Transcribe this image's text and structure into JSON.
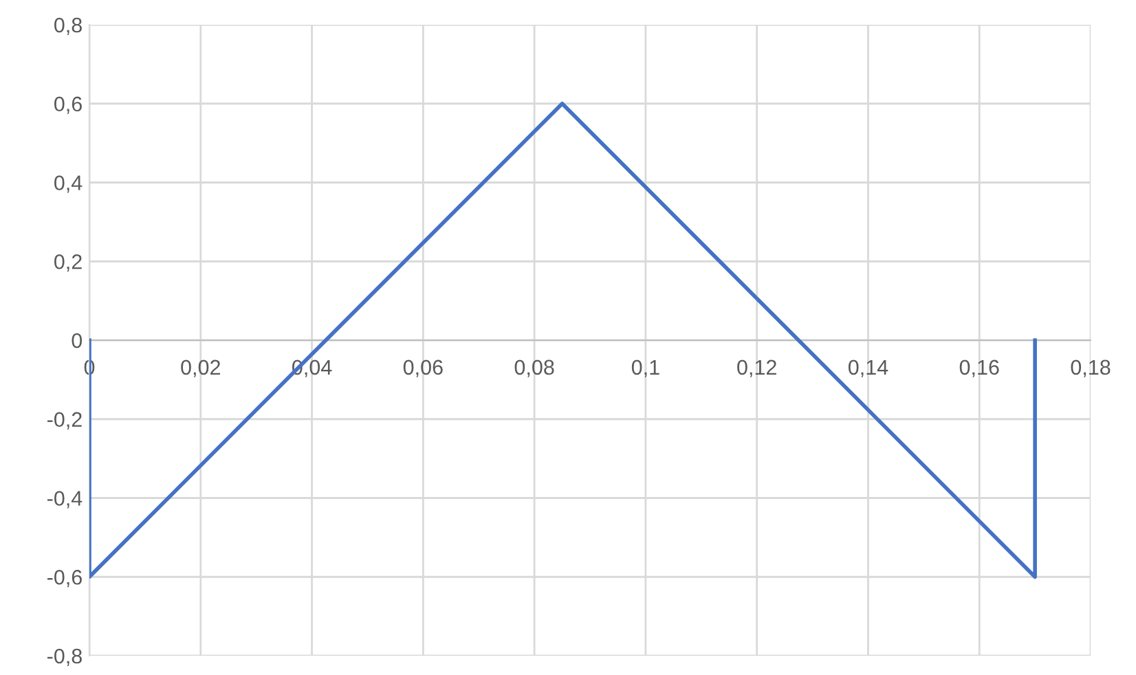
{
  "chart_data": {
    "type": "line",
    "series": [
      {
        "color": "#4472c4",
        "x": [
          0,
          0,
          0.085,
          0.17,
          0.17
        ],
        "values": [
          0,
          -0.6,
          0.6,
          -0.6,
          0
        ]
      }
    ],
    "xlim": [
      0,
      0.18
    ],
    "ylim": [
      -0.8,
      0.8
    ],
    "xticks": [
      0,
      {
        "value": 0.02,
        "label": "0,02"
      },
      {
        "value": 0.04,
        "label": "0,04"
      },
      {
        "value": 0.06,
        "label": "0,06"
      },
      {
        "value": 0.08,
        "label": "0,08"
      },
      {
        "value": 0.1,
        "label": "0,1"
      },
      {
        "value": 0.12,
        "label": "0,12"
      },
      {
        "value": 0.14,
        "label": "0,14"
      },
      {
        "value": 0.16,
        "label": "0,16"
      },
      {
        "value": 0.18,
        "label": "0,18"
      }
    ],
    "yticks": [
      {
        "value": -0.8,
        "label": "-0,8"
      },
      {
        "value": -0.6,
        "label": "-0,6"
      },
      {
        "value": -0.4,
        "label": "-0,4"
      },
      {
        "value": -0.2,
        "label": "-0,2"
      },
      0,
      {
        "value": 0.2,
        "label": "0,2"
      },
      {
        "value": 0.4,
        "label": "0,4"
      },
      {
        "value": 0.6,
        "label": "0,6"
      },
      {
        "value": 0.8,
        "label": "0,8"
      }
    ],
    "grid": true,
    "marker": "none",
    "line_style": "solid"
  }
}
